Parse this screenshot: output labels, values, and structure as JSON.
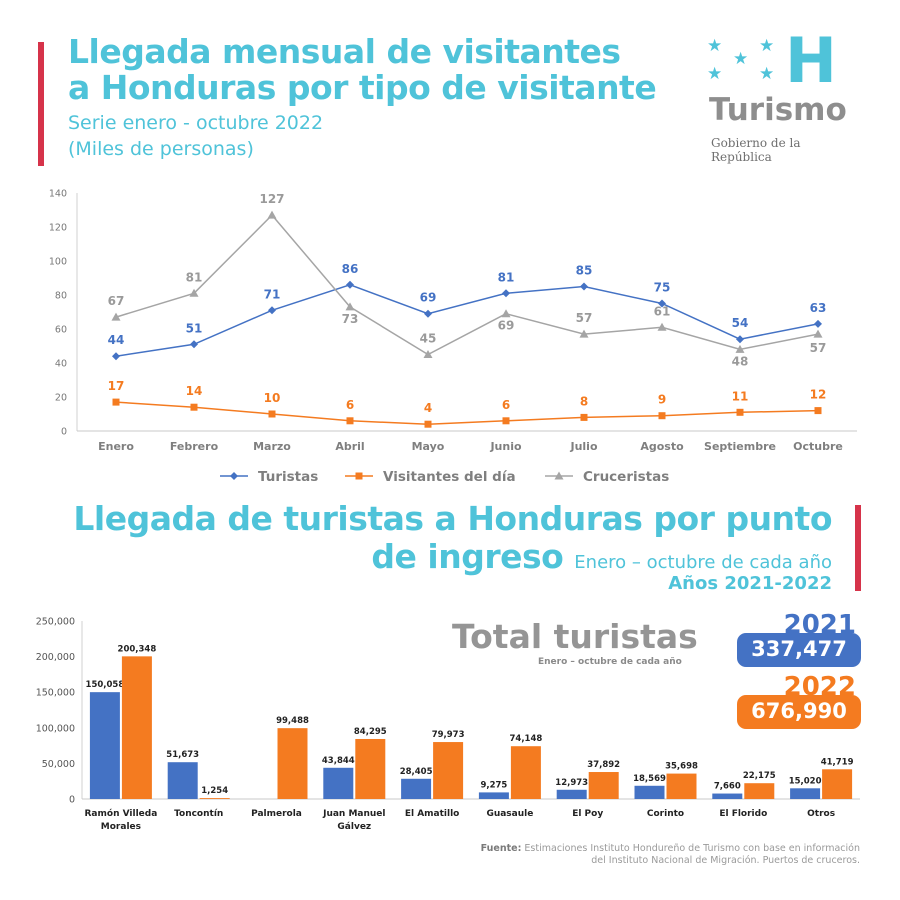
{
  "header": {
    "title_line1": "Llegada mensual de visitantes",
    "title_line2": "a Honduras por tipo de visitante",
    "subtitle_line1": "Serie enero - octubre 2022",
    "subtitle_line2": "(Miles de personas)"
  },
  "logo": {
    "letter": "H",
    "word": "Turismo",
    "subtitle": "Gobierno de la República",
    "icon": "five-stars-icon"
  },
  "section2": {
    "title_line1": "Llegada de turistas a Honduras por punto",
    "title_line2": "de ingreso",
    "subtitle": "Enero – octubre de cada año",
    "years_label": "Años 2021-2022"
  },
  "totals": {
    "title": "Total turistas",
    "subtitle": "Enero – octubre de cada año",
    "items": [
      {
        "year": "2021",
        "value": "337,477",
        "color": "#4472c4"
      },
      {
        "year": "2022",
        "value": "676,990",
        "color": "#f47b20"
      }
    ]
  },
  "source": {
    "label": "Fuente:",
    "line1": "Estimaciones Instituto Hondureño de Turismo con base en información",
    "line2": "del Instituto Nacional de Migración. Puertos de cruceros."
  },
  "colors": {
    "accent": "#4fc3d9",
    "red": "#d6334a",
    "blue": "#4472c4",
    "orange": "#f47b20",
    "gray": "#a5a5a5"
  },
  "chart_data": [
    {
      "type": "line",
      "categories": [
        "Enero",
        "Febrero",
        "Marzo",
        "Abril",
        "Mayo",
        "Junio",
        "Julio",
        "Agosto",
        "Septiembre",
        "Octubre"
      ],
      "ylim": [
        0,
        140
      ],
      "yticks": [
        0,
        20,
        40,
        60,
        80,
        100,
        120,
        140
      ],
      "series": [
        {
          "name": "Turistas",
          "color": "#4472c4",
          "marker": "diamond",
          "values": [
            44,
            51,
            71,
            86,
            69,
            81,
            85,
            75,
            54,
            63
          ]
        },
        {
          "name": "Visitantes del día",
          "color": "#f47b20",
          "marker": "square",
          "values": [
            17,
            14,
            10,
            6,
            4,
            6,
            8,
            9,
            11,
            12
          ]
        },
        {
          "name": "Cruceristas",
          "color": "#a5a5a5",
          "marker": "triangle",
          "values": [
            67,
            81,
            127,
            73,
            45,
            69,
            57,
            61,
            48,
            57
          ]
        }
      ],
      "legend": "bottom"
    },
    {
      "type": "bar",
      "categories": [
        "Ramón Villeda Morales",
        "Toncontín",
        "Palmerola",
        "Juan Manuel Gálvez",
        "El Amatillo",
        "Guasaule",
        "El Poy",
        "Corinto",
        "El Florido",
        "Otros"
      ],
      "ylim": [
        0,
        250000
      ],
      "yticks": [
        "0",
        "50,000",
        "100,000",
        "150,000",
        "200,000",
        "250,000"
      ],
      "series": [
        {
          "color": "#4472c4",
          "values": [
            150058,
            51673,
            null,
            43844,
            28405,
            9275,
            12973,
            18569,
            7660,
            15020
          ],
          "labels": [
            "150,058",
            "51,673",
            "",
            "43,844",
            "28,405",
            "9,275",
            "12,973",
            "18,569",
            "7,660",
            "15,020"
          ]
        },
        {
          "color": "#f47b20",
          "values": [
            200348,
            1254,
            99488,
            84295,
            79973,
            74148,
            37892,
            35698,
            22175,
            41719
          ],
          "labels": [
            "200,348",
            "1,254",
            "99,488",
            "84,295",
            "79,973",
            "74,148",
            "37,892",
            "35,698",
            "22,175",
            "41,719"
          ]
        }
      ]
    }
  ]
}
